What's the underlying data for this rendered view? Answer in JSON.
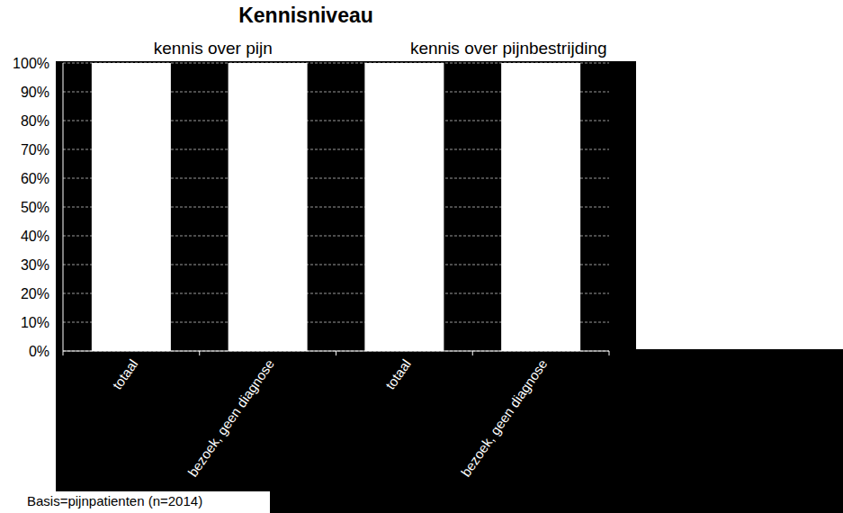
{
  "chart_data": {
    "type": "bar",
    "title": "Kennisniveau",
    "annotations": [
      "kennis over pijn",
      "kennis over pijnbestrijding"
    ],
    "footnote": "Basis=pijnpatienten (n=2014)",
    "categories": [
      "totaal",
      "bezoek, geen diagnose",
      "totaal",
      "bezoek, geen diagnose"
    ],
    "values": [
      100,
      100,
      100,
      100
    ],
    "color": "#ffffff",
    "ylim": [
      0,
      100
    ],
    "yticks": [
      {
        "value": 0,
        "label": "0%"
      },
      {
        "value": 10,
        "label": "10%"
      },
      {
        "value": 20,
        "label": "20%"
      },
      {
        "value": 30,
        "label": "30%"
      },
      {
        "value": 40,
        "label": "40%"
      },
      {
        "value": 50,
        "label": "50%"
      },
      {
        "value": 60,
        "label": "60%"
      },
      {
        "value": 70,
        "label": "70%"
      },
      {
        "value": 80,
        "label": "80%"
      },
      {
        "value": 90,
        "label": "90%"
      },
      {
        "value": 100,
        "label": "100%"
      }
    ],
    "grid": true
  }
}
